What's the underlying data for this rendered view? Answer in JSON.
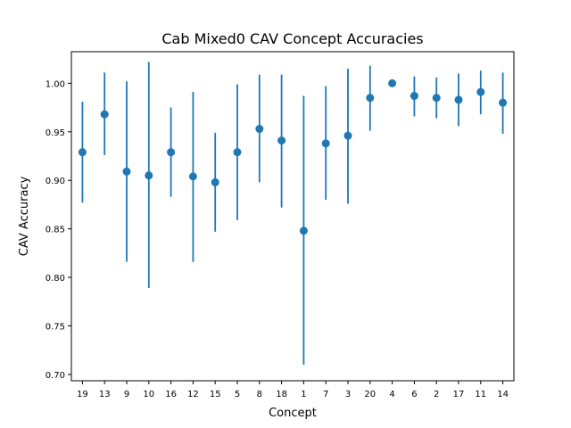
{
  "chart_data": {
    "type": "scatter",
    "subtype": "errorbar",
    "title": "Cab Mixed0 CAV Concept Accuracies",
    "xlabel": "Concept",
    "ylabel": "CAV Accuracy",
    "categories": [
      "19",
      "13",
      "9",
      "10",
      "16",
      "12",
      "15",
      "5",
      "8",
      "18",
      "1",
      "7",
      "3",
      "20",
      "4",
      "6",
      "2",
      "17",
      "11",
      "14"
    ],
    "values": [
      0.929,
      0.968,
      0.909,
      0.905,
      0.929,
      0.904,
      0.898,
      0.929,
      0.953,
      0.941,
      0.848,
      0.938,
      0.946,
      0.985,
      1.0,
      0.987,
      0.985,
      0.983,
      0.991,
      0.98
    ],
    "error_low": [
      0.877,
      0.926,
      0.816,
      0.789,
      0.883,
      0.816,
      0.847,
      0.859,
      0.898,
      0.872,
      0.71,
      0.88,
      0.876,
      0.951,
      1.0,
      0.966,
      0.964,
      0.956,
      0.968,
      0.948
    ],
    "error_high": [
      0.981,
      1.011,
      1.002,
      1.022,
      0.975,
      0.991,
      0.949,
      0.999,
      1.009,
      1.009,
      0.987,
      0.997,
      1.015,
      1.018,
      1.0,
      1.007,
      1.006,
      1.01,
      1.013,
      1.011
    ],
    "yticks": [
      "0.70",
      "0.75",
      "0.80",
      "0.85",
      "0.90",
      "0.95",
      "1.00"
    ],
    "ylim": [
      0.6935,
      1.0325
    ],
    "grid": false,
    "legend": "none",
    "color": "#1f77b4"
  }
}
